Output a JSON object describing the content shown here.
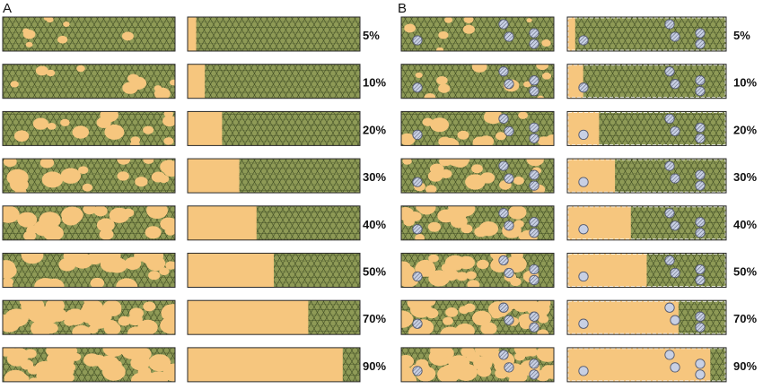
{
  "panels": [
    {
      "letter": "A"
    },
    {
      "letter": "B"
    }
  ],
  "levels": [
    {
      "label": "5%",
      "fraction": 0.05
    },
    {
      "label": "10%",
      "fraction": 0.1
    },
    {
      "label": "20%",
      "fraction": 0.2
    },
    {
      "label": "30%",
      "fraction": 0.3
    },
    {
      "label": "40%",
      "fraction": 0.4
    },
    {
      "label": "50%",
      "fraction": 0.5
    },
    {
      "label": "70%",
      "fraction": 0.7
    },
    {
      "label": "90%",
      "fraction": 0.9
    }
  ],
  "colors": {
    "cell_fill": "#8e9a56",
    "cell_edge": "#3d4a22",
    "cleared": "#f6c67e",
    "frame": "#2a2a2a",
    "particle_fill": "#c8d0e4",
    "particle_edge": "#555b70",
    "label": "#111111"
  },
  "icons": {
    "hex_cell": "hexagon-cell-icon",
    "particle": "circle-particle-icon",
    "particle_in_tissue": "striped-particle-icon"
  }
}
